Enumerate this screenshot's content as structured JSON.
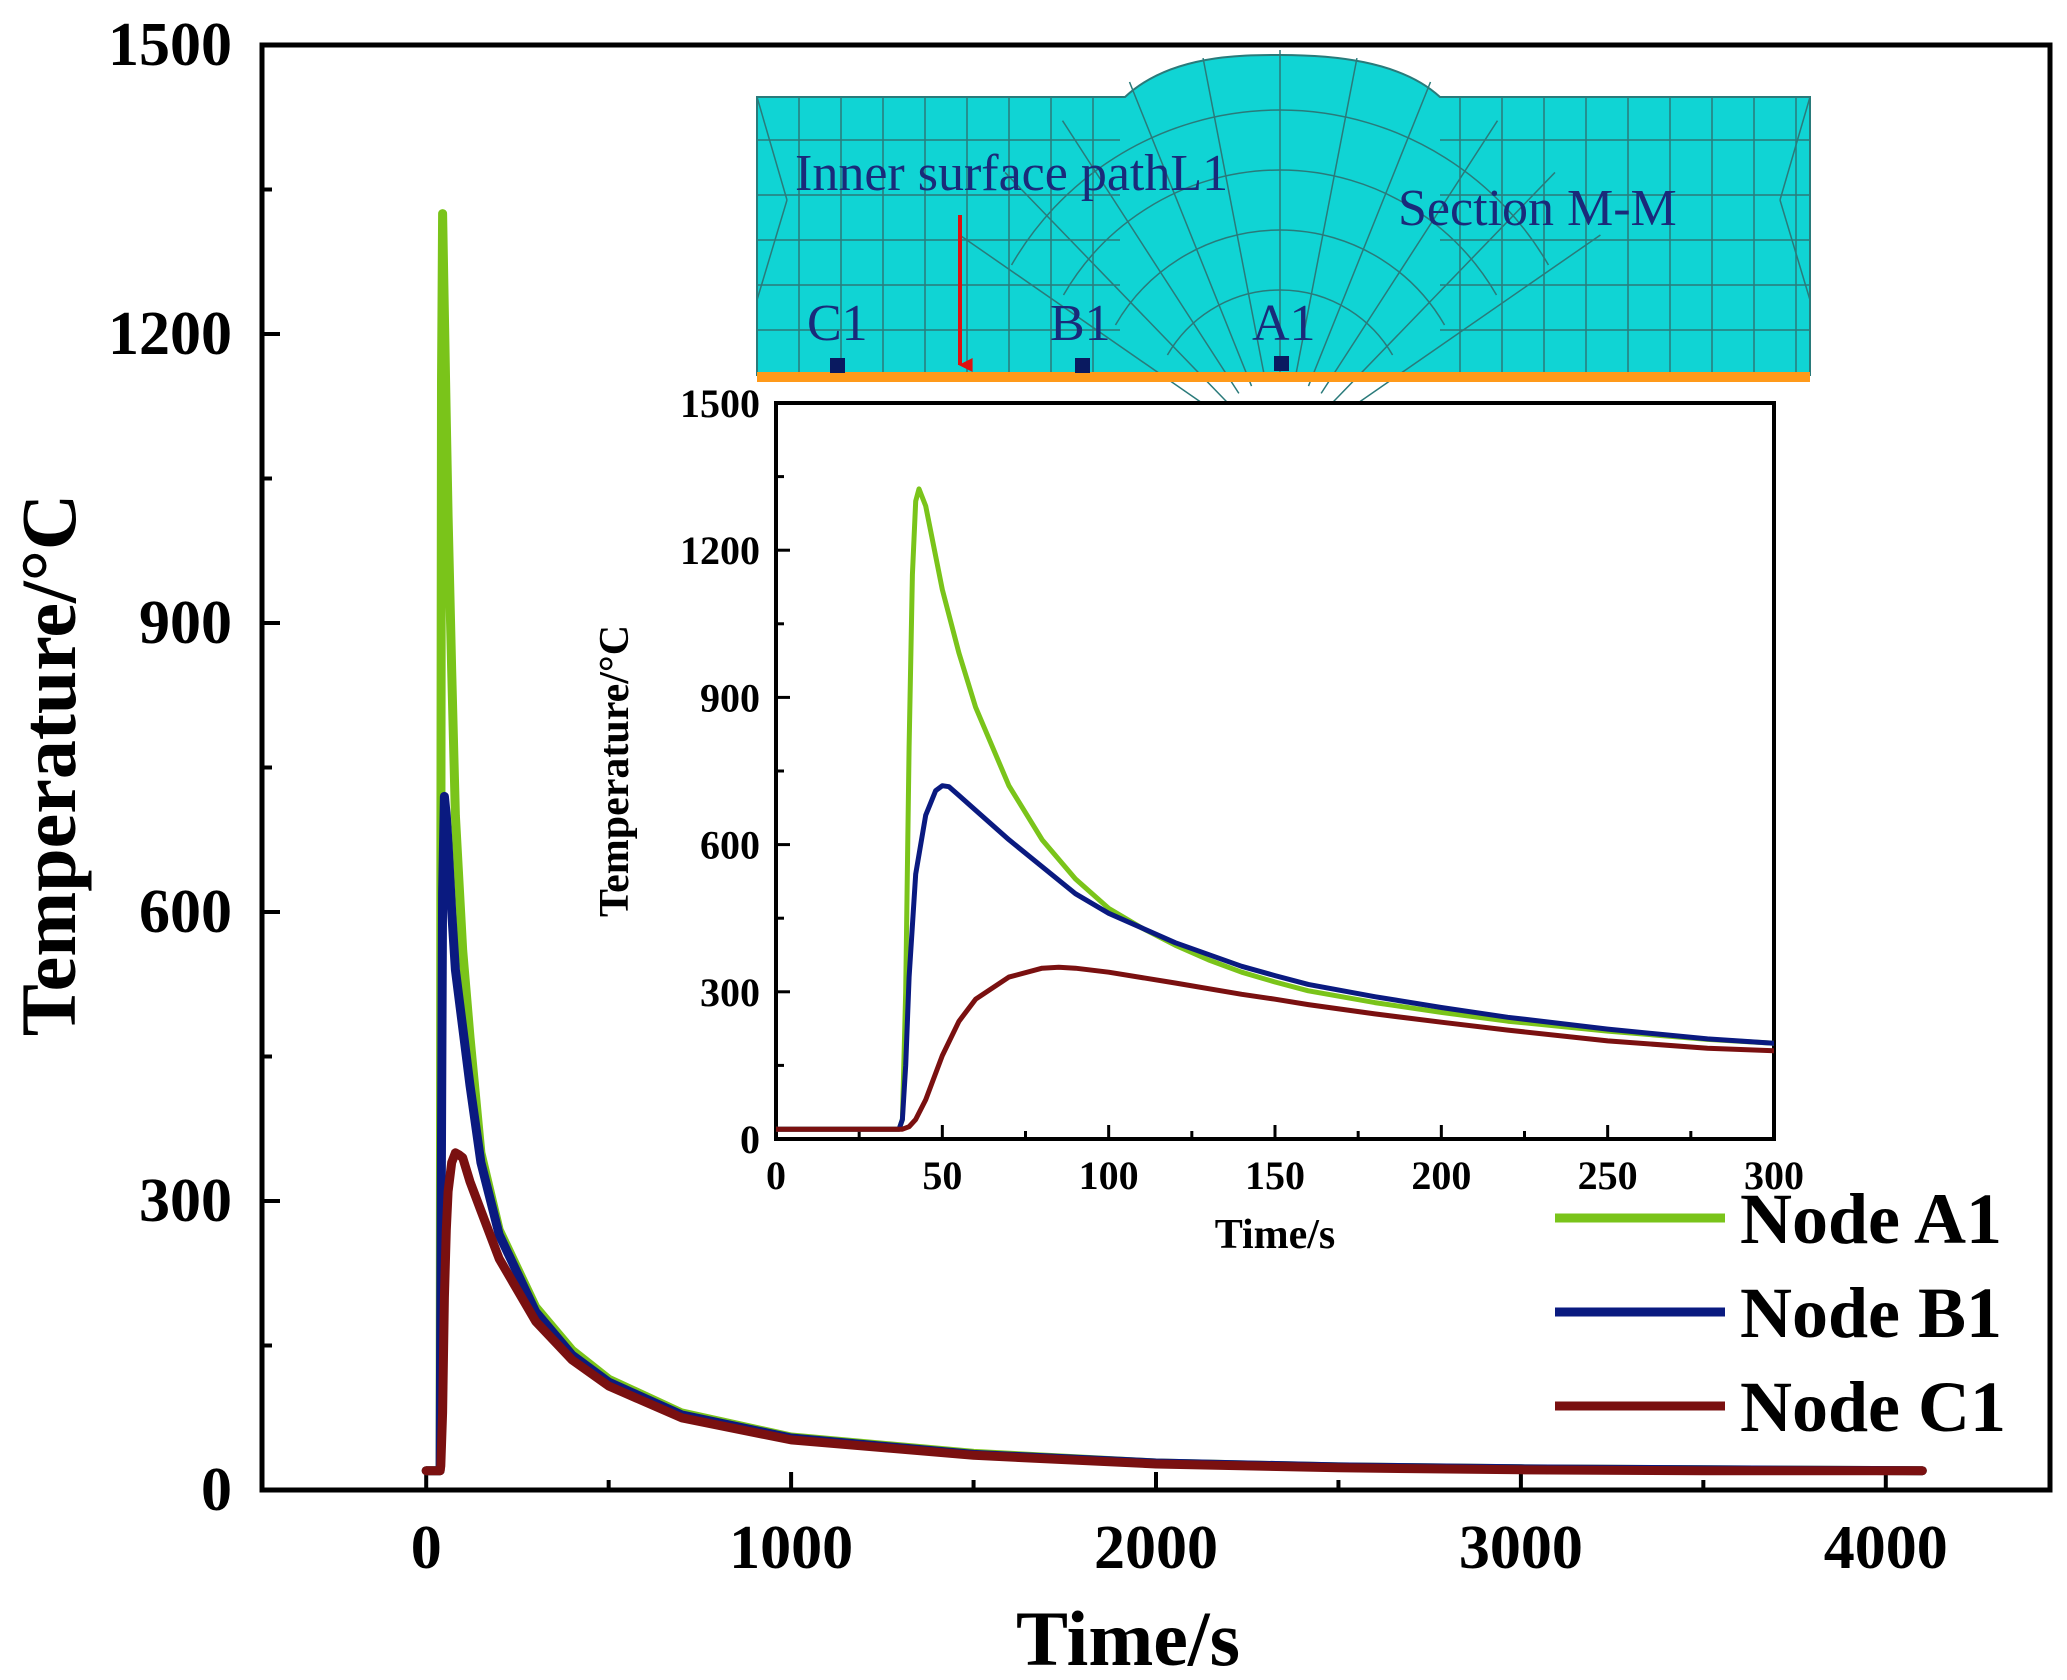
{
  "colors": {
    "node_a1": "#7ac41a",
    "node_b1": "#0a1a80",
    "node_c1": "#7a1010",
    "mesh_fill": "#10d4d4",
    "mesh_line": "#2a7a7a",
    "surface_line": "#ff9a1a",
    "arrow": "#e01010",
    "node_marker": "#0a1a60"
  },
  "chart_data": [
    {
      "id": "main",
      "type": "line",
      "title": "",
      "xlabel": "Time/s",
      "ylabel": "Temperature/°C",
      "xlim": [
        -450,
        4450
      ],
      "ylim": [
        0,
        1500
      ],
      "xticks": [
        0,
        1000,
        2000,
        3000,
        4000
      ],
      "xtick_labels": [
        "0",
        "1000",
        "2000",
        "3000",
        "4000"
      ],
      "yticks": [
        0,
        300,
        600,
        900,
        1200,
        1500
      ],
      "ytick_labels": [
        "0",
        "300",
        "600",
        "900",
        "1200",
        "1500"
      ],
      "legend": {
        "position": "bottom-right",
        "entries": [
          "Node A1",
          "Node B1",
          "Node C1"
        ]
      },
      "series": [
        {
          "name": "Node A1",
          "x": [
            0,
            36,
            38,
            40,
            42,
            45,
            50,
            55,
            60,
            70,
            80,
            100,
            120,
            150,
            200,
            300,
            400,
            500,
            700,
            1000,
            1500,
            2000,
            2500,
            3000,
            3500,
            4100
          ],
          "values": [
            20,
            20,
            20,
            600,
            1150,
            1325,
            1220,
            1110,
            1010,
            850,
            700,
            560,
            470,
            350,
            270,
            190,
            145,
            115,
            80,
            55,
            38,
            28,
            24,
            22,
            21,
            20
          ]
        },
        {
          "name": "Node B1",
          "x": [
            0,
            36,
            38,
            40,
            45,
            50,
            55,
            60,
            70,
            80,
            100,
            120,
            150,
            200,
            300,
            400,
            500,
            700,
            1000,
            1500,
            2000,
            2500,
            3000,
            3500,
            4100
          ],
          "values": [
            20,
            20,
            20,
            200,
            620,
            720,
            700,
            670,
            600,
            540,
            480,
            420,
            340,
            265,
            185,
            140,
            112,
            78,
            54,
            37,
            28,
            24,
            22,
            21,
            20
          ]
        },
        {
          "name": "Node C1",
          "x": [
            0,
            38,
            40,
            45,
            50,
            55,
            60,
            70,
            80,
            90,
            100,
            120,
            150,
            200,
            300,
            400,
            500,
            700,
            1000,
            1500,
            2000,
            2500,
            3000,
            3500,
            4100
          ],
          "values": [
            20,
            20,
            25,
            80,
            200,
            270,
            310,
            340,
            350,
            348,
            345,
            320,
            290,
            240,
            175,
            135,
            108,
            75,
            52,
            36,
            27,
            23,
            21,
            20,
            20
          ]
        }
      ]
    },
    {
      "id": "inset",
      "type": "line",
      "title": "",
      "xlabel": "Time/s",
      "ylabel": "Temperature/°C",
      "xlim": [
        0,
        300
      ],
      "ylim": [
        0,
        1500
      ],
      "xticks": [
        0,
        50,
        100,
        150,
        200,
        250,
        300
      ],
      "xtick_labels": [
        "0",
        "50",
        "100",
        "150",
        "200",
        "250",
        "300"
      ],
      "yticks": [
        0,
        300,
        600,
        900,
        1200,
        1500
      ],
      "ytick_labels": [
        "0",
        "300",
        "600",
        "900",
        "1200",
        "1500"
      ],
      "series": [
        {
          "name": "Node A1",
          "x": [
            0,
            37,
            38,
            39,
            40,
            41,
            42,
            43,
            45,
            50,
            55,
            60,
            70,
            80,
            90,
            100,
            110,
            120,
            130,
            140,
            150,
            160,
            180,
            200,
            220,
            250,
            280,
            300
          ],
          "values": [
            20,
            20,
            40,
            300,
            800,
            1150,
            1300,
            1325,
            1290,
            1120,
            990,
            880,
            720,
            610,
            530,
            470,
            430,
            395,
            365,
            340,
            320,
            302,
            278,
            258,
            240,
            220,
            203,
            195
          ]
        },
        {
          "name": "Node B1",
          "x": [
            0,
            37,
            38,
            39,
            40,
            42,
            45,
            48,
            50,
            52,
            55,
            60,
            70,
            80,
            90,
            100,
            120,
            140,
            150,
            160,
            180,
            200,
            220,
            250,
            280,
            300
          ],
          "values": [
            20,
            20,
            40,
            150,
            330,
            540,
            660,
            710,
            720,
            718,
            700,
            670,
            610,
            555,
            500,
            460,
            400,
            352,
            333,
            315,
            290,
            268,
            248,
            224,
            204,
            195
          ]
        },
        {
          "name": "Node C1",
          "x": [
            0,
            38,
            40,
            42,
            45,
            50,
            55,
            60,
            70,
            80,
            85,
            90,
            100,
            120,
            140,
            150,
            160,
            180,
            200,
            220,
            250,
            280,
            300
          ],
          "values": [
            20,
            20,
            25,
            40,
            80,
            170,
            240,
            285,
            330,
            348,
            350,
            348,
            340,
            318,
            295,
            285,
            274,
            255,
            238,
            222,
            200,
            185,
            180
          ]
        }
      ]
    }
  ],
  "mesh_inset": {
    "title": "Section M-M",
    "path_label": "Inner surface pathL1",
    "nodes": [
      "C1",
      "B1",
      "A1"
    ]
  }
}
